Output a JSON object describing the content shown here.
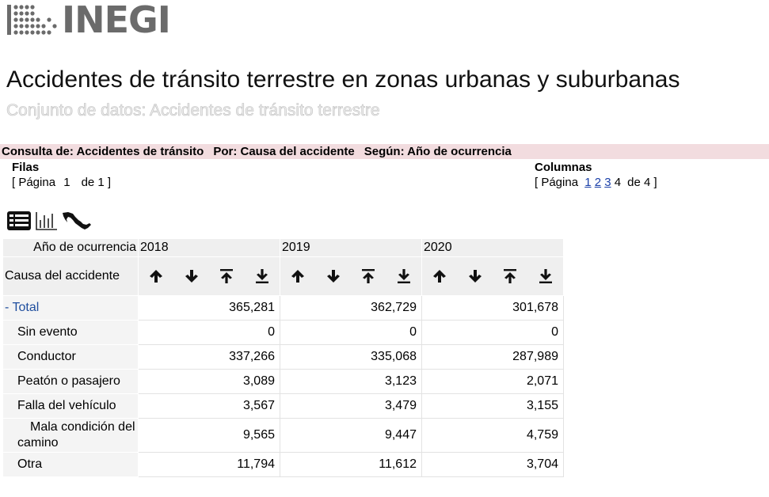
{
  "logo": {
    "text": "INEGI",
    "icon": "inegi-dots-logo"
  },
  "page": {
    "title": "Accidentes de tránsito terrestre en zonas urbanas y suburbanas",
    "subtitle": "Conjunto de datos: Accidentes de tránsito terrestre"
  },
  "query": {
    "consulta": "Consulta de: Accidentes de tránsito",
    "por": "Por: Causa del accidente",
    "segun": "Según: Año de ocurrencia"
  },
  "rows_pane": {
    "heading": "Filas",
    "pager_prefix": "[ Página",
    "current": "1",
    "of": "de 1 ]"
  },
  "cols_pane": {
    "heading": "Columnas",
    "pager_prefix": "[ Página",
    "links": [
      "1",
      "2",
      "3"
    ],
    "current": "4",
    "of": "de 4 ]"
  },
  "view_icons": [
    "table-view-icon",
    "chart-view-icon",
    "map-view-icon"
  ],
  "table": {
    "year_header": "Año de ocurrencia",
    "row_header": "Causa del accidente",
    "years": [
      "2018",
      "2019",
      "2020"
    ],
    "sort_icons": [
      "sort-ascending-icon",
      "sort-descending-icon",
      "sort-to-top-icon",
      "sort-to-bottom-icon"
    ],
    "rows": [
      {
        "label": "- Total",
        "values": [
          "365,281",
          "362,729",
          "301,678"
        ]
      },
      {
        "label": "Sin evento",
        "values": [
          "0",
          "0",
          "0"
        ]
      },
      {
        "label": "Conductor",
        "values": [
          "337,266",
          "335,068",
          "287,989"
        ]
      },
      {
        "label": "Peatón o pasajero",
        "values": [
          "3,089",
          "3,123",
          "2,071"
        ]
      },
      {
        "label": "Falla del vehículo",
        "values": [
          "3,567",
          "3,479",
          "3,155"
        ]
      },
      {
        "label": "Mala condición del camino",
        "values": [
          "9,565",
          "9,447",
          "4,759"
        ]
      },
      {
        "label": "Otra",
        "values": [
          "11,794",
          "11,612",
          "3,704"
        ]
      }
    ]
  },
  "colors": {
    "query_bar": "#f2dcdf",
    "link": "#1a3fa8",
    "logo": "#6b6b6b"
  }
}
